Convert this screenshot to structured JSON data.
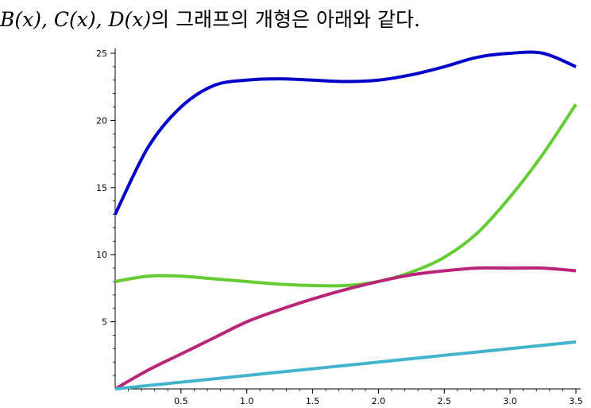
{
  "caption": {
    "math": "B(x), C(x), D(x)",
    "text": "의 그래프의 개형은 아래와 같다."
  },
  "chart_data": {
    "type": "line",
    "title": "",
    "xlabel": "",
    "ylabel": "",
    "xlim": [
      0,
      3.5
    ],
    "ylim": [
      0,
      25
    ],
    "x_ticks": [
      "0.5",
      "1.0",
      "1.5",
      "2.0",
      "2.5",
      "3.0",
      "3.5"
    ],
    "y_ticks": [
      "5",
      "10",
      "15",
      "20",
      "25"
    ],
    "grid": false,
    "x": [
      0,
      0.25,
      0.5,
      0.75,
      1.0,
      1.25,
      1.5,
      1.75,
      2.0,
      2.25,
      2.5,
      2.75,
      3.0,
      3.25,
      3.5
    ],
    "series": [
      {
        "color": "#0000c8",
        "values": [
          13.0,
          18.0,
          21.0,
          22.6,
          23.0,
          23.1,
          23.0,
          22.9,
          23.0,
          23.4,
          24.0,
          24.7,
          25.0,
          25.0,
          24.0
        ]
      },
      {
        "color": "#66cc33",
        "values": [
          8.0,
          8.4,
          8.4,
          8.2,
          8.0,
          7.8,
          7.7,
          7.7,
          8.0,
          8.7,
          9.8,
          11.6,
          14.3,
          17.5,
          21.2
        ]
      },
      {
        "color": "#b8267a",
        "values": [
          0.0,
          1.4,
          2.6,
          3.8,
          5.0,
          5.9,
          6.7,
          7.4,
          8.0,
          8.5,
          8.8,
          9.0,
          9.0,
          9.0,
          8.8
        ]
      },
      {
        "color": "#44b3cc",
        "values": [
          0.0,
          0.25,
          0.5,
          0.75,
          1.0,
          1.25,
          1.5,
          1.75,
          2.0,
          2.25,
          2.5,
          2.75,
          3.0,
          3.25,
          3.5
        ]
      }
    ]
  }
}
